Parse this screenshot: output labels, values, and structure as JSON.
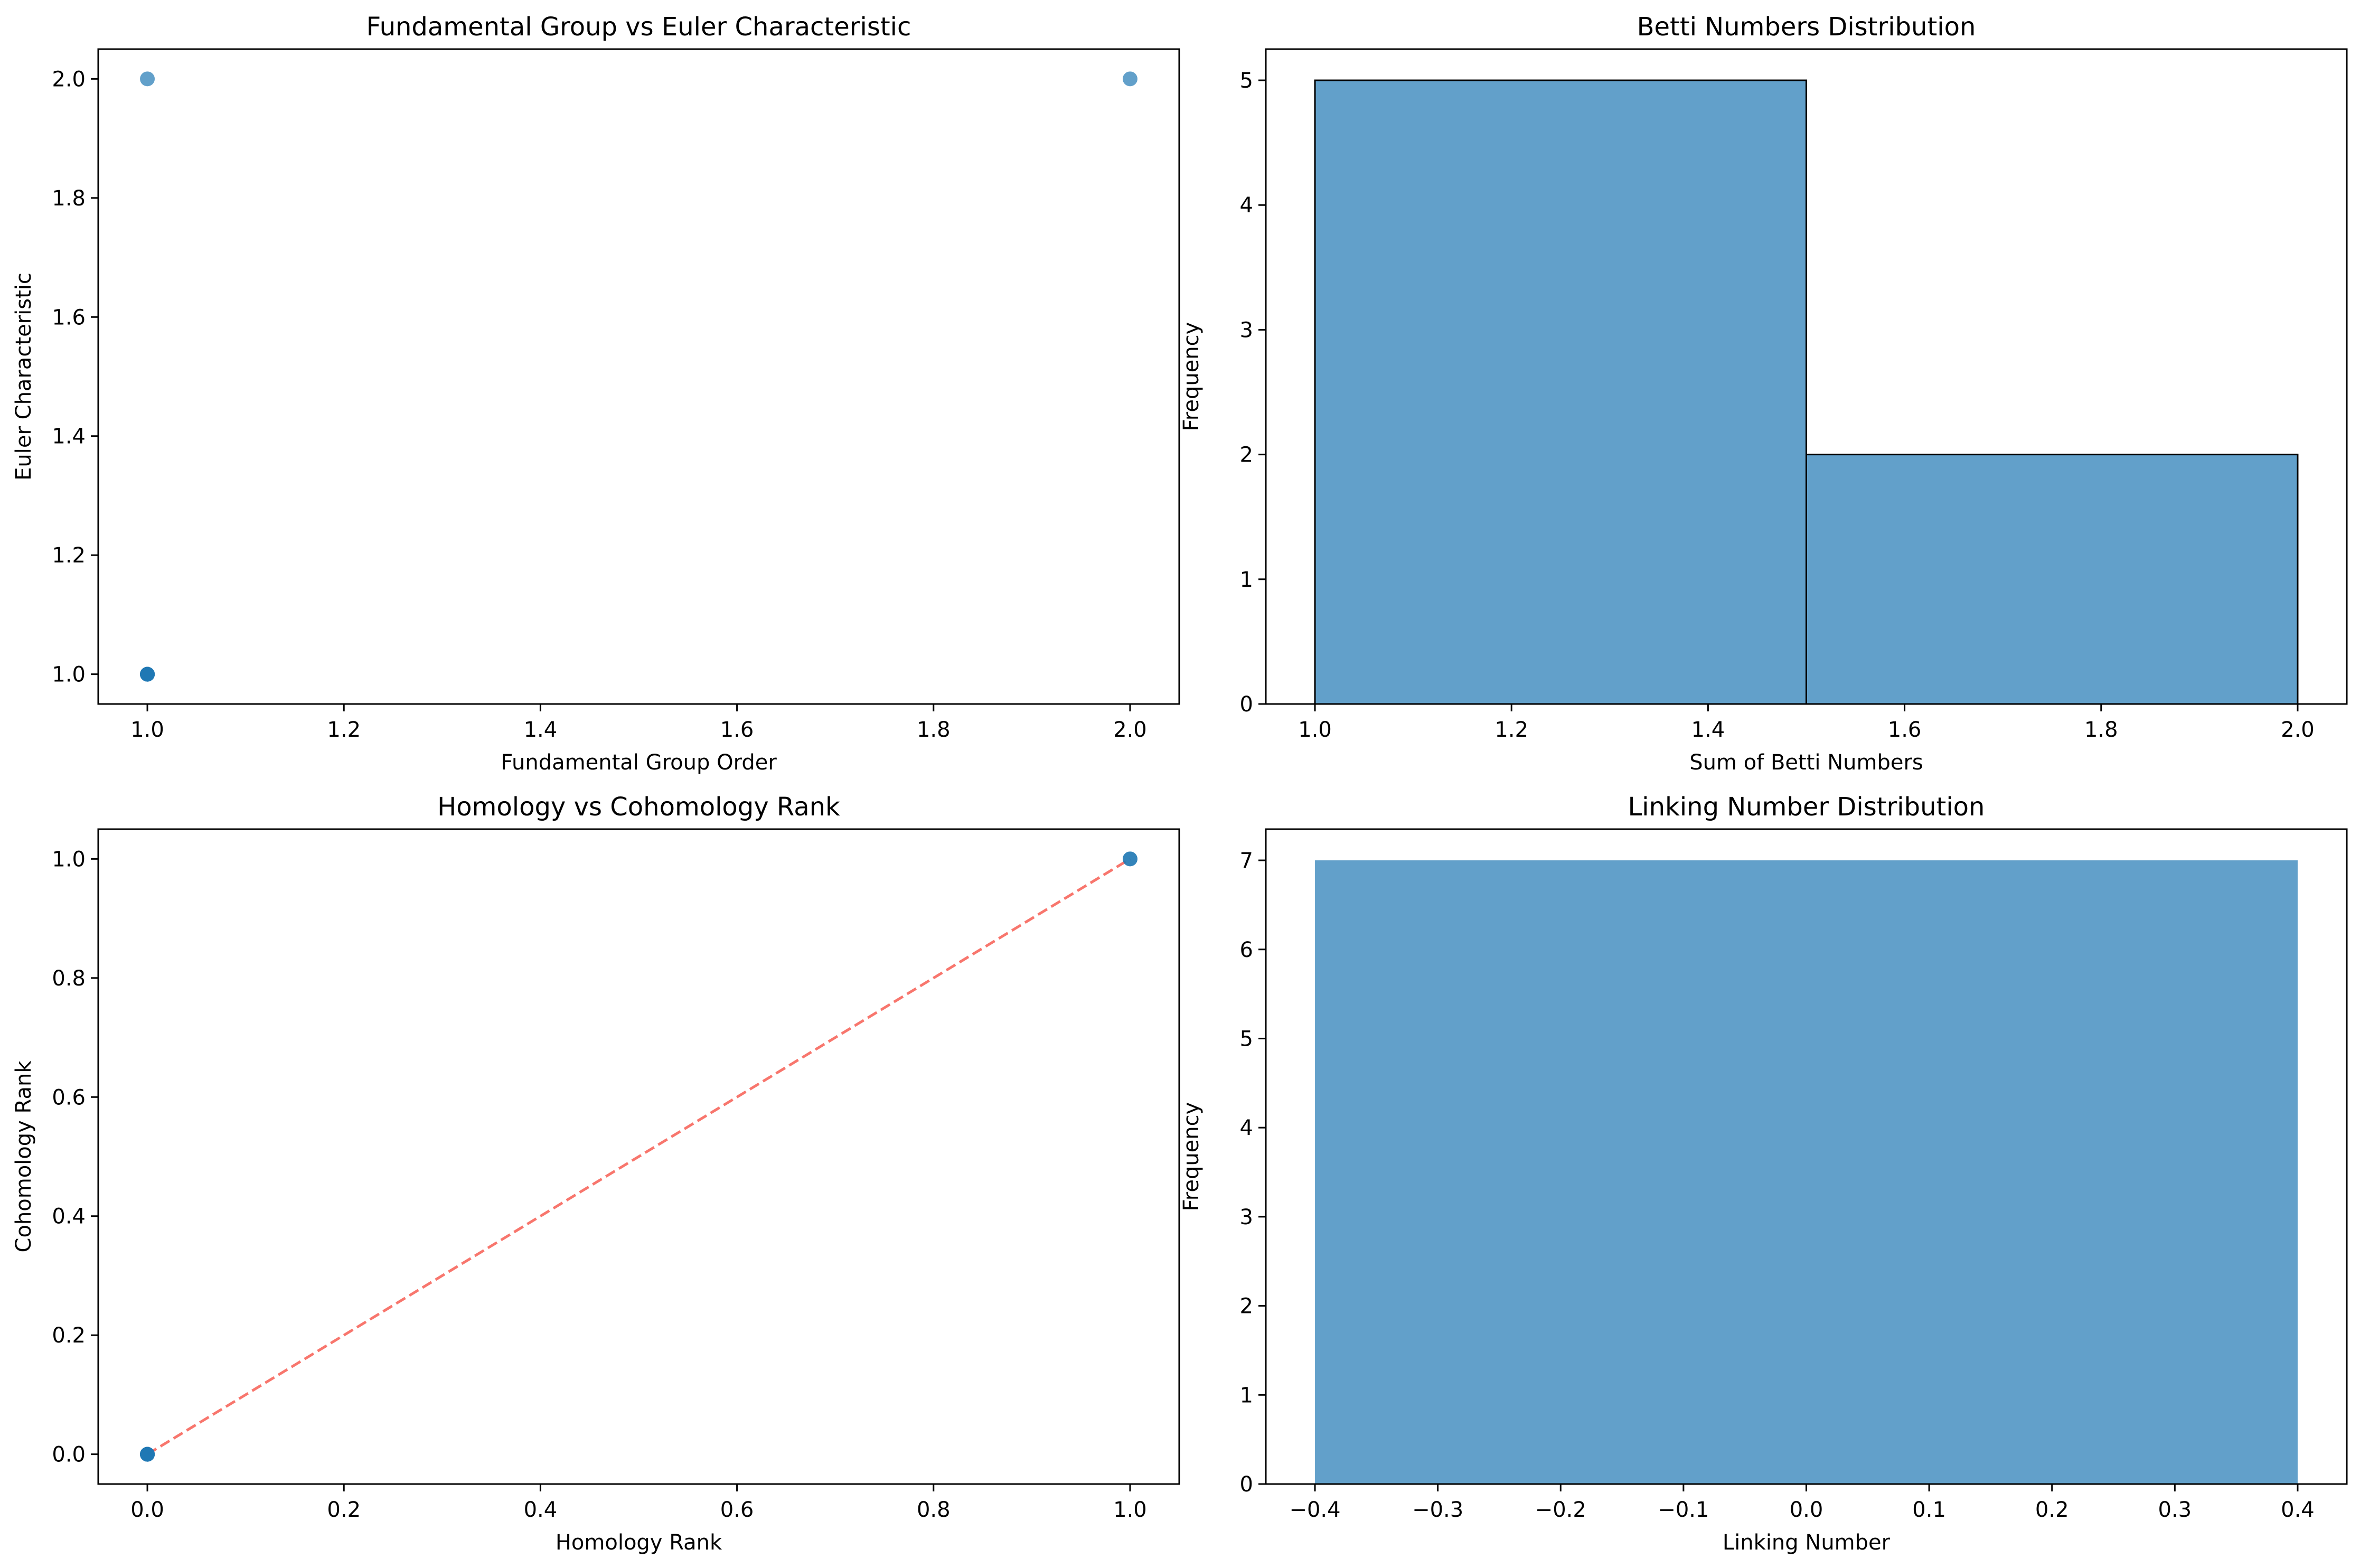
{
  "colors": {
    "scatter": "#1f77b4",
    "bar": "#1f77b4",
    "diagonal": "#f8766d",
    "edge": "#000000"
  },
  "chart_data": [
    {
      "type": "scatter",
      "title": "Fundamental Group vs Euler Characteristic",
      "xlabel": "Fundamental Group Order",
      "ylabel": "Euler Characteristic",
      "xlim": [
        0.95,
        2.05
      ],
      "ylim": [
        0.95,
        2.05
      ],
      "xticks": [
        1.0,
        1.2,
        1.4,
        1.6,
        1.8,
        2.0
      ],
      "yticks": [
        1.0,
        1.2,
        1.4,
        1.6,
        1.8,
        2.0
      ],
      "tick_format": 1,
      "points": [
        {
          "x": 1.0,
          "y": 1.0
        },
        {
          "x": 1.0,
          "y": 1.0
        },
        {
          "x": 1.0,
          "y": 1.0
        },
        {
          "x": 1.0,
          "y": 1.0
        },
        {
          "x": 1.0,
          "y": 1.0
        },
        {
          "x": 1.0,
          "y": 2.0
        },
        {
          "x": 2.0,
          "y": 2.0
        }
      ],
      "grid": false
    },
    {
      "type": "bar",
      "subtype": "histogram",
      "title": "Betti Numbers Distribution",
      "xlabel": "Sum of Betti Numbers",
      "ylabel": "Frequency",
      "xlim": [
        0.95,
        2.05
      ],
      "ylim": [
        0,
        5.25
      ],
      "xticks": [
        1.0,
        1.2,
        1.4,
        1.6,
        1.8,
        2.0
      ],
      "yticks": [
        0,
        1,
        2,
        3,
        4,
        5
      ],
      "xtick_format": 1,
      "ytick_format": 0,
      "bins": [
        {
          "start": 1.0,
          "end": 1.5,
          "count": 5
        },
        {
          "start": 1.5,
          "end": 2.0,
          "count": 2
        }
      ],
      "edge": true,
      "grid": false
    },
    {
      "type": "scatter",
      "title": "Homology vs Cohomology Rank",
      "xlabel": "Homology Rank",
      "ylabel": "Cohomology Rank",
      "xlim": [
        -0.05,
        1.05
      ],
      "ylim": [
        -0.05,
        1.05
      ],
      "xticks": [
        0.0,
        0.2,
        0.4,
        0.6,
        0.8,
        1.0
      ],
      "yticks": [
        0.0,
        0.2,
        0.4,
        0.6,
        0.8,
        1.0
      ],
      "tick_format": 1,
      "points": [
        {
          "x": 0,
          "y": 0
        },
        {
          "x": 0,
          "y": 0
        },
        {
          "x": 0,
          "y": 0
        },
        {
          "x": 0,
          "y": 0
        },
        {
          "x": 0,
          "y": 0
        },
        {
          "x": 1,
          "y": 1
        },
        {
          "x": 1,
          "y": 1
        }
      ],
      "reference_line": {
        "x": [
          0,
          1
        ],
        "y": [
          0,
          1
        ],
        "style": "dashed"
      },
      "grid": false
    },
    {
      "type": "bar",
      "subtype": "histogram",
      "title": "Linking Number Distribution",
      "xlabel": "Linking Number",
      "ylabel": "Frequency",
      "xlim": [
        -0.44,
        0.44
      ],
      "ylim": [
        0,
        7.35
      ],
      "xticks": [
        -0.4,
        -0.3,
        -0.2,
        -0.1,
        0.0,
        0.1,
        0.2,
        0.3,
        0.4
      ],
      "yticks": [
        0,
        1,
        2,
        3,
        4,
        5,
        6,
        7
      ],
      "xtick_format": 1,
      "ytick_format": 0,
      "bins": [
        {
          "start": -0.4,
          "end": 0.4,
          "count": 7
        }
      ],
      "edge": false,
      "grid": false
    }
  ]
}
